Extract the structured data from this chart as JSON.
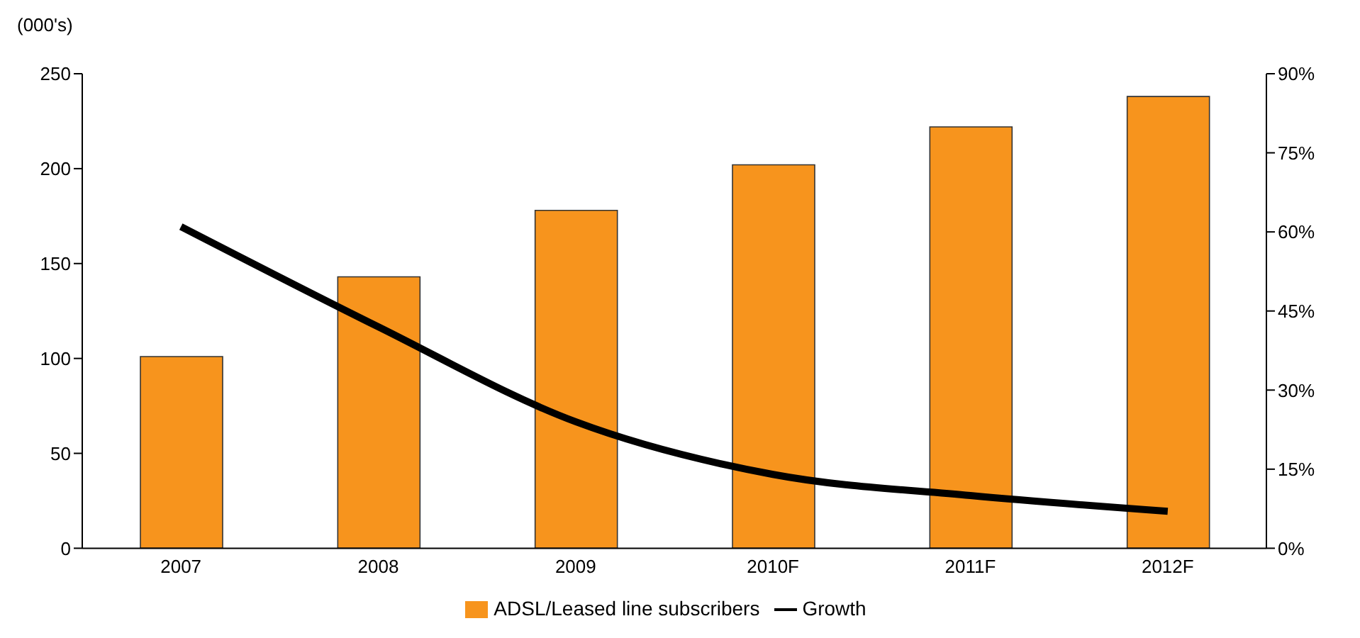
{
  "chart_data": {
    "type": "bar",
    "ylabel": "(000's)",
    "categories": [
      "2007",
      "2008",
      "2009",
      "2010F",
      "2011F",
      "2012F"
    ],
    "series": [
      {
        "name": "ADSL/Leased line subscribers",
        "color": "#f7941d",
        "values": [
          101,
          143,
          178,
          202,
          222,
          238
        ]
      },
      {
        "name": "Growth",
        "type": "line",
        "axis": "y2",
        "color": "#000000",
        "values": [
          61,
          42,
          24,
          14,
          10,
          7
        ]
      }
    ],
    "ylim": [
      0,
      250
    ],
    "yticks": [
      0,
      50,
      100,
      150,
      200,
      250
    ],
    "y2lim": [
      0,
      90
    ],
    "y2ticks": [
      {
        "value": 0,
        "label": "0%"
      },
      {
        "value": 15,
        "label": "15%"
      },
      {
        "value": 30,
        "label": "30%"
      },
      {
        "value": 45,
        "label": "45%"
      },
      {
        "value": 60,
        "label": "60%"
      },
      {
        "value": 75,
        "label": "75%"
      },
      {
        "value": 90,
        "label": "90%"
      }
    ],
    "legend": "bottom",
    "grid": false,
    "marker": "none",
    "line_style": "solid"
  }
}
